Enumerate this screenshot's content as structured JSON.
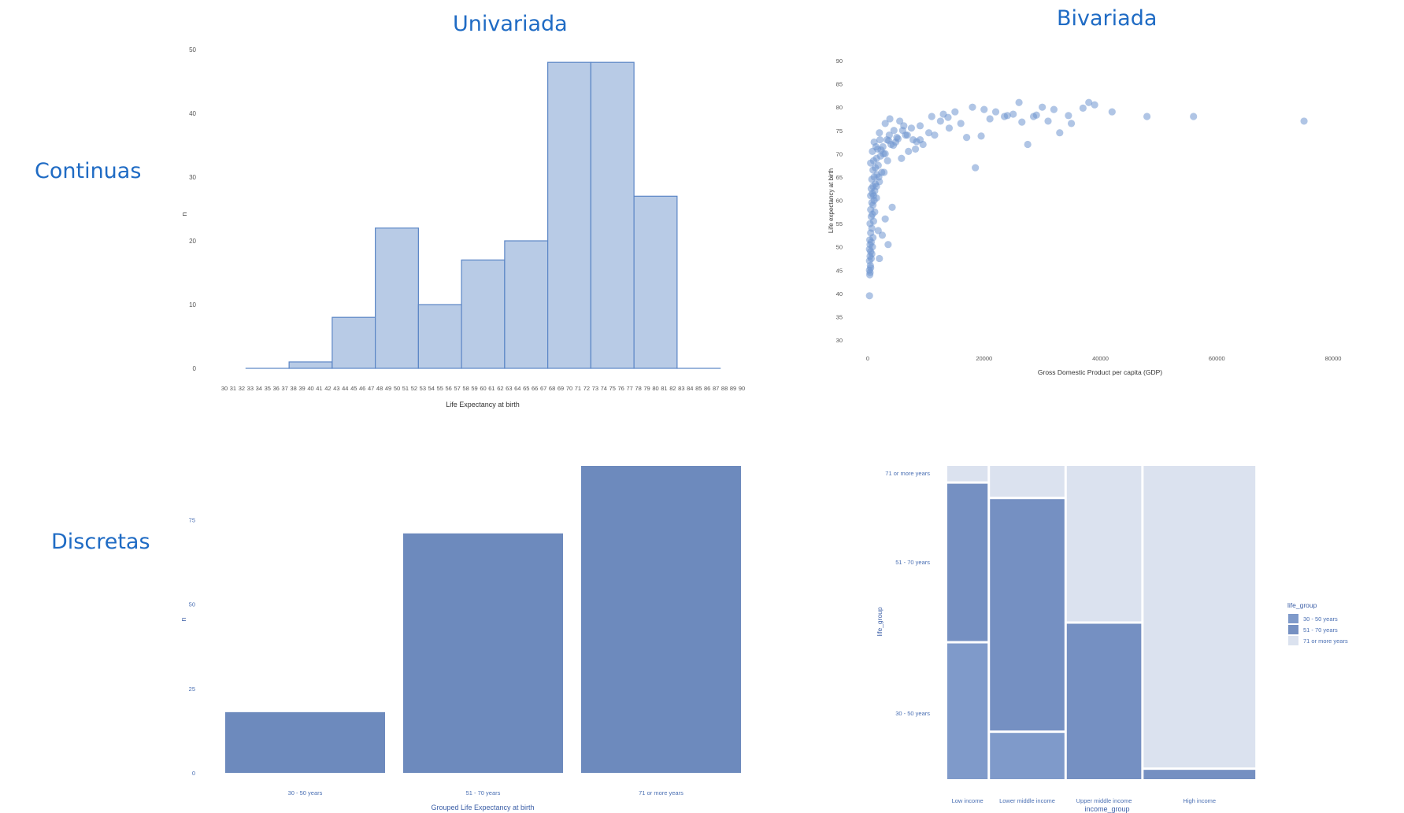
{
  "headings": {
    "univariada": "Univariada",
    "bivariada": "Bivariada",
    "continuas": "Continuas",
    "discretas": "Discretas"
  },
  "colors": {
    "heading": "#1f6bc4",
    "hist_fill": "#b8cbe6",
    "hist_stroke": "#5b86c6",
    "scatter_point": "#6f96cf",
    "bar_fill": "#6d8abd",
    "mosaic_30_50": "#7f9aca",
    "mosaic_51_70": "#7590c2",
    "mosaic_71": "#dbe2ef",
    "axis_text": "#555555",
    "blue_axis_text": "#4a6fb3"
  },
  "chart_data": [
    {
      "id": "histogram",
      "type": "bar",
      "title": "",
      "xlabel": "Life Expectancy at birth",
      "ylabel": "n",
      "xlim": [
        30,
        90
      ],
      "ylim": [
        0,
        50
      ],
      "y_ticks": [
        0,
        10,
        20,
        30,
        40,
        50
      ],
      "x_ticks": [
        30,
        31,
        32,
        33,
        34,
        35,
        36,
        37,
        38,
        39,
        40,
        41,
        42,
        43,
        44,
        45,
        46,
        47,
        48,
        49,
        50,
        51,
        52,
        53,
        54,
        55,
        56,
        57,
        58,
        59,
        60,
        61,
        62,
        63,
        64,
        65,
        66,
        67,
        68,
        69,
        70,
        71,
        72,
        73,
        74,
        75,
        76,
        77,
        78,
        79,
        80,
        81,
        82,
        83,
        84,
        85,
        86,
        87,
        88,
        89,
        90
      ],
      "bins": [
        {
          "from": 32.5,
          "to": 37.5,
          "value": 0
        },
        {
          "from": 37.5,
          "to": 42.5,
          "value": 1
        },
        {
          "from": 42.5,
          "to": 47.5,
          "value": 8
        },
        {
          "from": 47.5,
          "to": 52.5,
          "value": 22
        },
        {
          "from": 52.5,
          "to": 57.5,
          "value": 10
        },
        {
          "from": 57.5,
          "to": 62.5,
          "value": 17
        },
        {
          "from": 62.5,
          "to": 67.5,
          "value": 20
        },
        {
          "from": 67.5,
          "to": 72.5,
          "value": 48
        },
        {
          "from": 72.5,
          "to": 77.5,
          "value": 48
        },
        {
          "from": 77.5,
          "to": 82.5,
          "value": 27
        },
        {
          "from": 82.5,
          "to": 87.5,
          "value": 0
        }
      ]
    },
    {
      "id": "scatter",
      "type": "scatter",
      "title": "",
      "xlabel": "Gross Domestic Product per capita (GDP)",
      "ylabel": "Life expectancy at birth",
      "xlim": [
        0,
        80000
      ],
      "ylim": [
        30,
        90
      ],
      "x_ticks": [
        0,
        20000,
        40000,
        60000,
        80000
      ],
      "y_ticks": [
        30,
        35,
        40,
        45,
        50,
        55,
        60,
        65,
        70,
        75,
        80,
        85,
        90
      ],
      "points": [
        [
          300,
          39.5
        ],
        [
          350,
          44
        ],
        [
          400,
          44.5
        ],
        [
          300,
          45
        ],
        [
          500,
          45.5
        ],
        [
          450,
          46
        ],
        [
          300,
          47
        ],
        [
          600,
          47.5
        ],
        [
          2000,
          47.5
        ],
        [
          400,
          48
        ],
        [
          700,
          48.5
        ],
        [
          500,
          49
        ],
        [
          300,
          49.5
        ],
        [
          800,
          50
        ],
        [
          400,
          50.5
        ],
        [
          3500,
          50.5
        ],
        [
          600,
          51
        ],
        [
          350,
          51.5
        ],
        [
          900,
          52
        ],
        [
          2500,
          52.5
        ],
        [
          500,
          53
        ],
        [
          1800,
          53.5
        ],
        [
          700,
          54
        ],
        [
          400,
          55
        ],
        [
          1000,
          55.5
        ],
        [
          3000,
          56
        ],
        [
          600,
          56.5
        ],
        [
          800,
          57
        ],
        [
          1200,
          57.5
        ],
        [
          500,
          58
        ],
        [
          4200,
          58.5
        ],
        [
          900,
          59
        ],
        [
          700,
          59.5
        ],
        [
          1100,
          60
        ],
        [
          1500,
          60.5
        ],
        [
          500,
          61
        ],
        [
          800,
          61.5
        ],
        [
          1200,
          62
        ],
        [
          600,
          62.5
        ],
        [
          900,
          63
        ],
        [
          1300,
          63.5
        ],
        [
          2000,
          64
        ],
        [
          700,
          64.5
        ],
        [
          1100,
          65
        ],
        [
          1600,
          65.5
        ],
        [
          2400,
          66
        ],
        [
          900,
          66.5
        ],
        [
          1300,
          67
        ],
        [
          1800,
          67.5
        ],
        [
          500,
          68
        ],
        [
          1000,
          68.5
        ],
        [
          1500,
          69
        ],
        [
          2200,
          69.5
        ],
        [
          3000,
          70
        ],
        [
          800,
          70.5
        ],
        [
          1700,
          71
        ],
        [
          2600,
          71.5
        ],
        [
          4000,
          72
        ],
        [
          1100,
          72.5
        ],
        [
          3300,
          73
        ],
        [
          5000,
          73.5
        ],
        [
          6500,
          74
        ],
        [
          2000,
          74.5
        ],
        [
          4500,
          75
        ],
        [
          7500,
          75.5
        ],
        [
          9000,
          76
        ],
        [
          3000,
          76.5
        ],
        [
          5500,
          77
        ],
        [
          3800,
          77.5
        ],
        [
          11000,
          78
        ],
        [
          13000,
          78.5
        ],
        [
          15000,
          79
        ],
        [
          18000,
          80
        ],
        [
          9000,
          73
        ],
        [
          11500,
          74
        ],
        [
          17000,
          73.5
        ],
        [
          18500,
          67
        ],
        [
          20000,
          79.5
        ],
        [
          22000,
          79
        ],
        [
          23500,
          78
        ],
        [
          25000,
          78.5
        ],
        [
          26000,
          81
        ],
        [
          27500,
          72
        ],
        [
          28500,
          78
        ],
        [
          30000,
          80
        ],
        [
          31000,
          77
        ],
        [
          33000,
          74.5
        ],
        [
          35000,
          76.5
        ],
        [
          38000,
          81
        ],
        [
          42000,
          79
        ],
        [
          48000,
          78
        ],
        [
          56000,
          78
        ],
        [
          75000,
          77
        ],
        [
          5800,
          69
        ],
        [
          7000,
          70.5
        ],
        [
          8200,
          71
        ],
        [
          4800,
          72.5
        ],
        [
          3700,
          74
        ],
        [
          6000,
          75
        ],
        [
          2700,
          70
        ],
        [
          1400,
          71.5
        ],
        [
          2100,
          73
        ],
        [
          12500,
          77
        ],
        [
          14000,
          75.5
        ],
        [
          16000,
          76.5
        ],
        [
          21000,
          77.5
        ],
        [
          24000,
          78.2
        ],
        [
          29000,
          78.3
        ],
        [
          32000,
          79.5
        ],
        [
          37000,
          79.8
        ],
        [
          10500,
          74.5
        ],
        [
          9500,
          72
        ],
        [
          7800,
          73
        ],
        [
          6800,
          74
        ],
        [
          5200,
          73.2
        ],
        [
          4400,
          71.8
        ],
        [
          3400,
          68.5
        ],
        [
          2800,
          66
        ],
        [
          1900,
          65
        ],
        [
          1500,
          63
        ],
        [
          1000,
          61
        ],
        [
          2300,
          70.8
        ],
        [
          3600,
          72.8
        ],
        [
          6200,
          76
        ],
        [
          8400,
          72.6
        ],
        [
          13800,
          77.8
        ],
        [
          19500,
          73.8
        ],
        [
          26500,
          76.8
        ],
        [
          34500,
          78.2
        ],
        [
          39000,
          80.5
        ]
      ]
    },
    {
      "id": "barchart",
      "type": "bar",
      "title": "",
      "xlabel": "Grouped Life Expectancy at birth",
      "ylabel": "n",
      "categories": [
        "30 - 50 years",
        "51 - 70 years",
        "71 or more years"
      ],
      "values": [
        18,
        71,
        91
      ],
      "ylim": [
        0,
        91
      ],
      "y_ticks": [
        0,
        25,
        50,
        75
      ]
    },
    {
      "id": "mosaic",
      "type": "bar",
      "title": "",
      "xlabel": "income_group",
      "ylabel": "life_group",
      "legend_title": "life_group",
      "legend_position": "right",
      "groups": [
        "30 - 50 years",
        "51 - 70 years",
        "71 or more years"
      ],
      "categories": [
        "Low income",
        "Lower middle income",
        "Upper middle income",
        "High income"
      ],
      "column_share": [
        0.13,
        0.24,
        0.24,
        0.36
      ],
      "series": [
        {
          "name": "30 - 50 years",
          "values": [
            0.44,
            0.15,
            0.0,
            0.0
          ]
        },
        {
          "name": "51 - 70 years",
          "values": [
            0.51,
            0.75,
            0.5,
            0.03
          ]
        },
        {
          "name": "71 or more years",
          "values": [
            0.05,
            0.1,
            0.5,
            0.97
          ]
        }
      ],
      "y_labels": [
        "30 - 50 years",
        "51 - 70 years",
        "71 or more years"
      ]
    }
  ]
}
